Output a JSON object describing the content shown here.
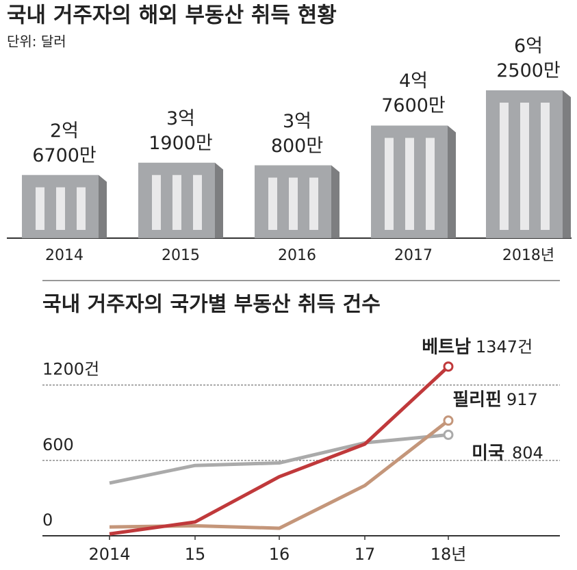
{
  "chart_data": [
    {
      "type": "bar",
      "title": "국내 거주자의 해외 부동산 취득 현황",
      "subtitle": "단위: 달러",
      "categories": [
        "2014",
        "2015",
        "2016",
        "2017",
        "2018년"
      ],
      "values": [
        267000000,
        319000000,
        308000000,
        476000000,
        625000000
      ],
      "value_labels": [
        "2억\n6700만",
        "3억\n1900만",
        "3억\n800만",
        "4억\n7600만",
        "6억\n2500만"
      ],
      "color": "#a6a8ab"
    },
    {
      "type": "line",
      "title": "국내 거주자의 국가별 부동산 취득 건수",
      "categories": [
        "2014",
        "15",
        "16",
        "17",
        "18년"
      ],
      "series": [
        {
          "name": "베트남",
          "color": "#c0393b",
          "values": [
            15,
            110,
            470,
            730,
            1347
          ],
          "value_labels": [
            null,
            null,
            null,
            null,
            "1347건"
          ]
        },
        {
          "name": "필리핀",
          "color": "#c4967a",
          "values": [
            70,
            80,
            60,
            400,
            917
          ]
        },
        {
          "name": "미국",
          "color": "#aaaaaa",
          "values": [
            420,
            560,
            580,
            740,
            804
          ]
        }
      ],
      "ylim": [
        0,
        1400
      ],
      "yticks": [
        0,
        600,
        {
          "value": 1200,
          "label": "1200건"
        }
      ],
      "grid": true
    }
  ]
}
